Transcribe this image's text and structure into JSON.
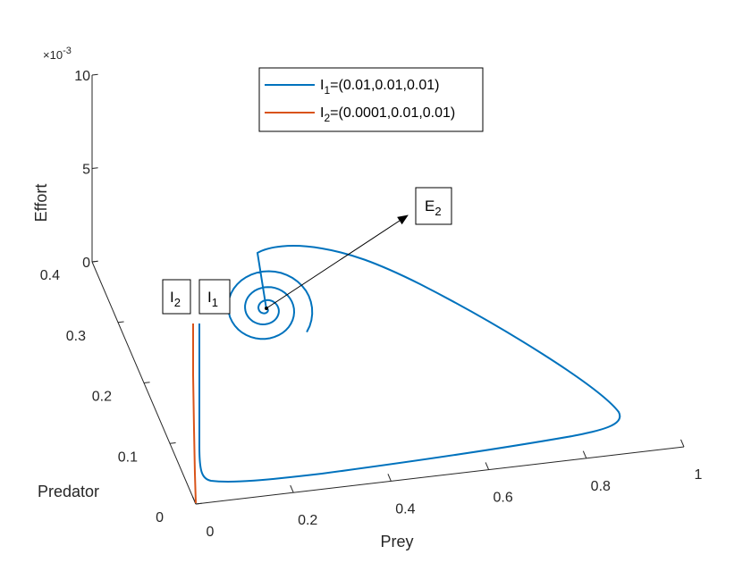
{
  "chart_data": {
    "type": "line3d",
    "xlabel": "Prey",
    "ylabel": "Predator",
    "zlabel": "Effort",
    "z_exponent_label": "×10",
    "z_exponent_power": "-3",
    "x_ticks": [
      "0",
      "0.2",
      "0.4",
      "0.6",
      "0.8",
      "1"
    ],
    "y_ticks": [
      "0",
      "0.1",
      "0.2",
      "0.3",
      "0.4"
    ],
    "z_ticks": [
      "0",
      "5",
      "10"
    ],
    "xlim": [
      0,
      1
    ],
    "ylim": [
      0,
      0.4
    ],
    "zlim": [
      0,
      0.01
    ],
    "grid": false,
    "legend_position": "top",
    "series": [
      {
        "name": "I_1=(0.01,0.01,0.01)",
        "legend_main": "I",
        "legend_sub": "1",
        "legend_rest": "=(0.01,0.01,0.01)",
        "color": "#0072BD",
        "description": "starts near (0.01, 0.01, 0.01), rises in predator then sweeps out in prey to about 0.9 and spirals into E_2"
      },
      {
        "name": "I_2=(0.0001,0.01,0.01)",
        "legend_main": "I",
        "legend_sub": "2",
        "legend_rest": "=(0.0001,0.01,0.01)",
        "color": "#D95319",
        "description": "starts near prey 0, predator ~0.01 and rises almost vertically in predator"
      }
    ],
    "annotations": [
      {
        "main": "I",
        "sub": "2"
      },
      {
        "main": "I",
        "sub": "1"
      },
      {
        "main": "E",
        "sub": "2"
      }
    ]
  }
}
